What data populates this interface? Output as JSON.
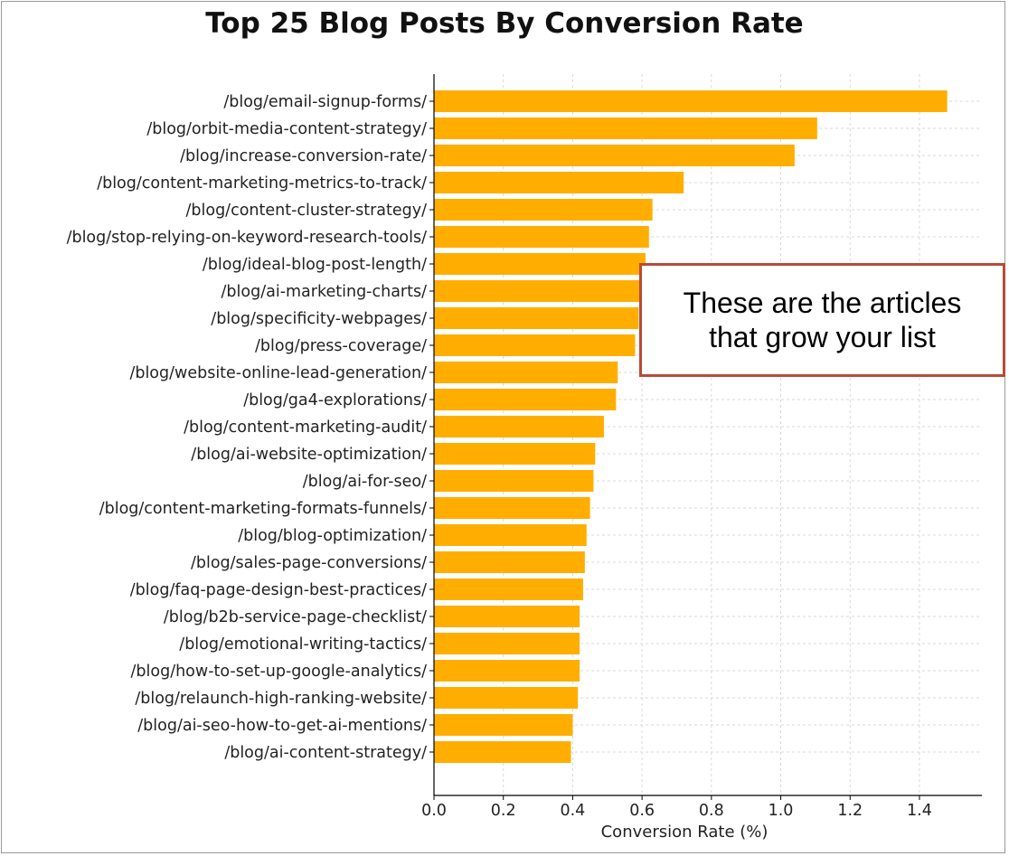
{
  "colors": {
    "bar": "#FFAE00",
    "axis": "#000000",
    "grid": "#d9d9d9",
    "callout_border": "#b94a38"
  },
  "callout_text": "These are the articles\nthat grow your list",
  "chart_data": {
    "type": "bar",
    "orientation": "horizontal",
    "title": "Top 25 Blog Posts By Conversion Rate",
    "xlabel": "Conversion Rate (%)",
    "ylabel": "",
    "xlim": [
      0,
      1.58
    ],
    "xticks": [
      0.0,
      0.2,
      0.4,
      0.6,
      0.8,
      1.0,
      1.2,
      1.4
    ],
    "xtick_labels": [
      "0.0",
      "0.2",
      "0.4",
      "0.6",
      "0.8",
      "1.0",
      "1.2",
      "1.4"
    ],
    "grid": "x-dashed",
    "categories": [
      "/blog/email-signup-forms/",
      "/blog/orbit-media-content-strategy/",
      "/blog/increase-conversion-rate/",
      "/blog/content-marketing-metrics-to-track/",
      "/blog/content-cluster-strategy/",
      "/blog/stop-relying-on-keyword-research-tools/",
      "/blog/ideal-blog-post-length/",
      "/blog/ai-marketing-charts/",
      "/blog/specificity-webpages/",
      "/blog/press-coverage/",
      "/blog/website-online-lead-generation/",
      "/blog/ga4-explorations/",
      "/blog/content-marketing-audit/",
      "/blog/ai-website-optimization/",
      "/blog/ai-for-seo/",
      "/blog/content-marketing-formats-funnels/",
      "/blog/blog-optimization/",
      "/blog/sales-page-conversions/",
      "/blog/faq-page-design-best-practices/",
      "/blog/b2b-service-page-checklist/",
      "/blog/emotional-writing-tactics/",
      "/blog/how-to-set-up-google-analytics/",
      "/blog/relaunch-high-ranking-website/",
      "/blog/ai-seo-how-to-get-ai-mentions/",
      "/blog/ai-content-strategy/"
    ],
    "values": [
      1.48,
      1.105,
      1.04,
      0.72,
      0.63,
      0.62,
      0.61,
      0.6,
      0.59,
      0.58,
      0.53,
      0.525,
      0.49,
      0.465,
      0.46,
      0.45,
      0.44,
      0.435,
      0.43,
      0.42,
      0.42,
      0.42,
      0.415,
      0.4,
      0.395
    ]
  }
}
